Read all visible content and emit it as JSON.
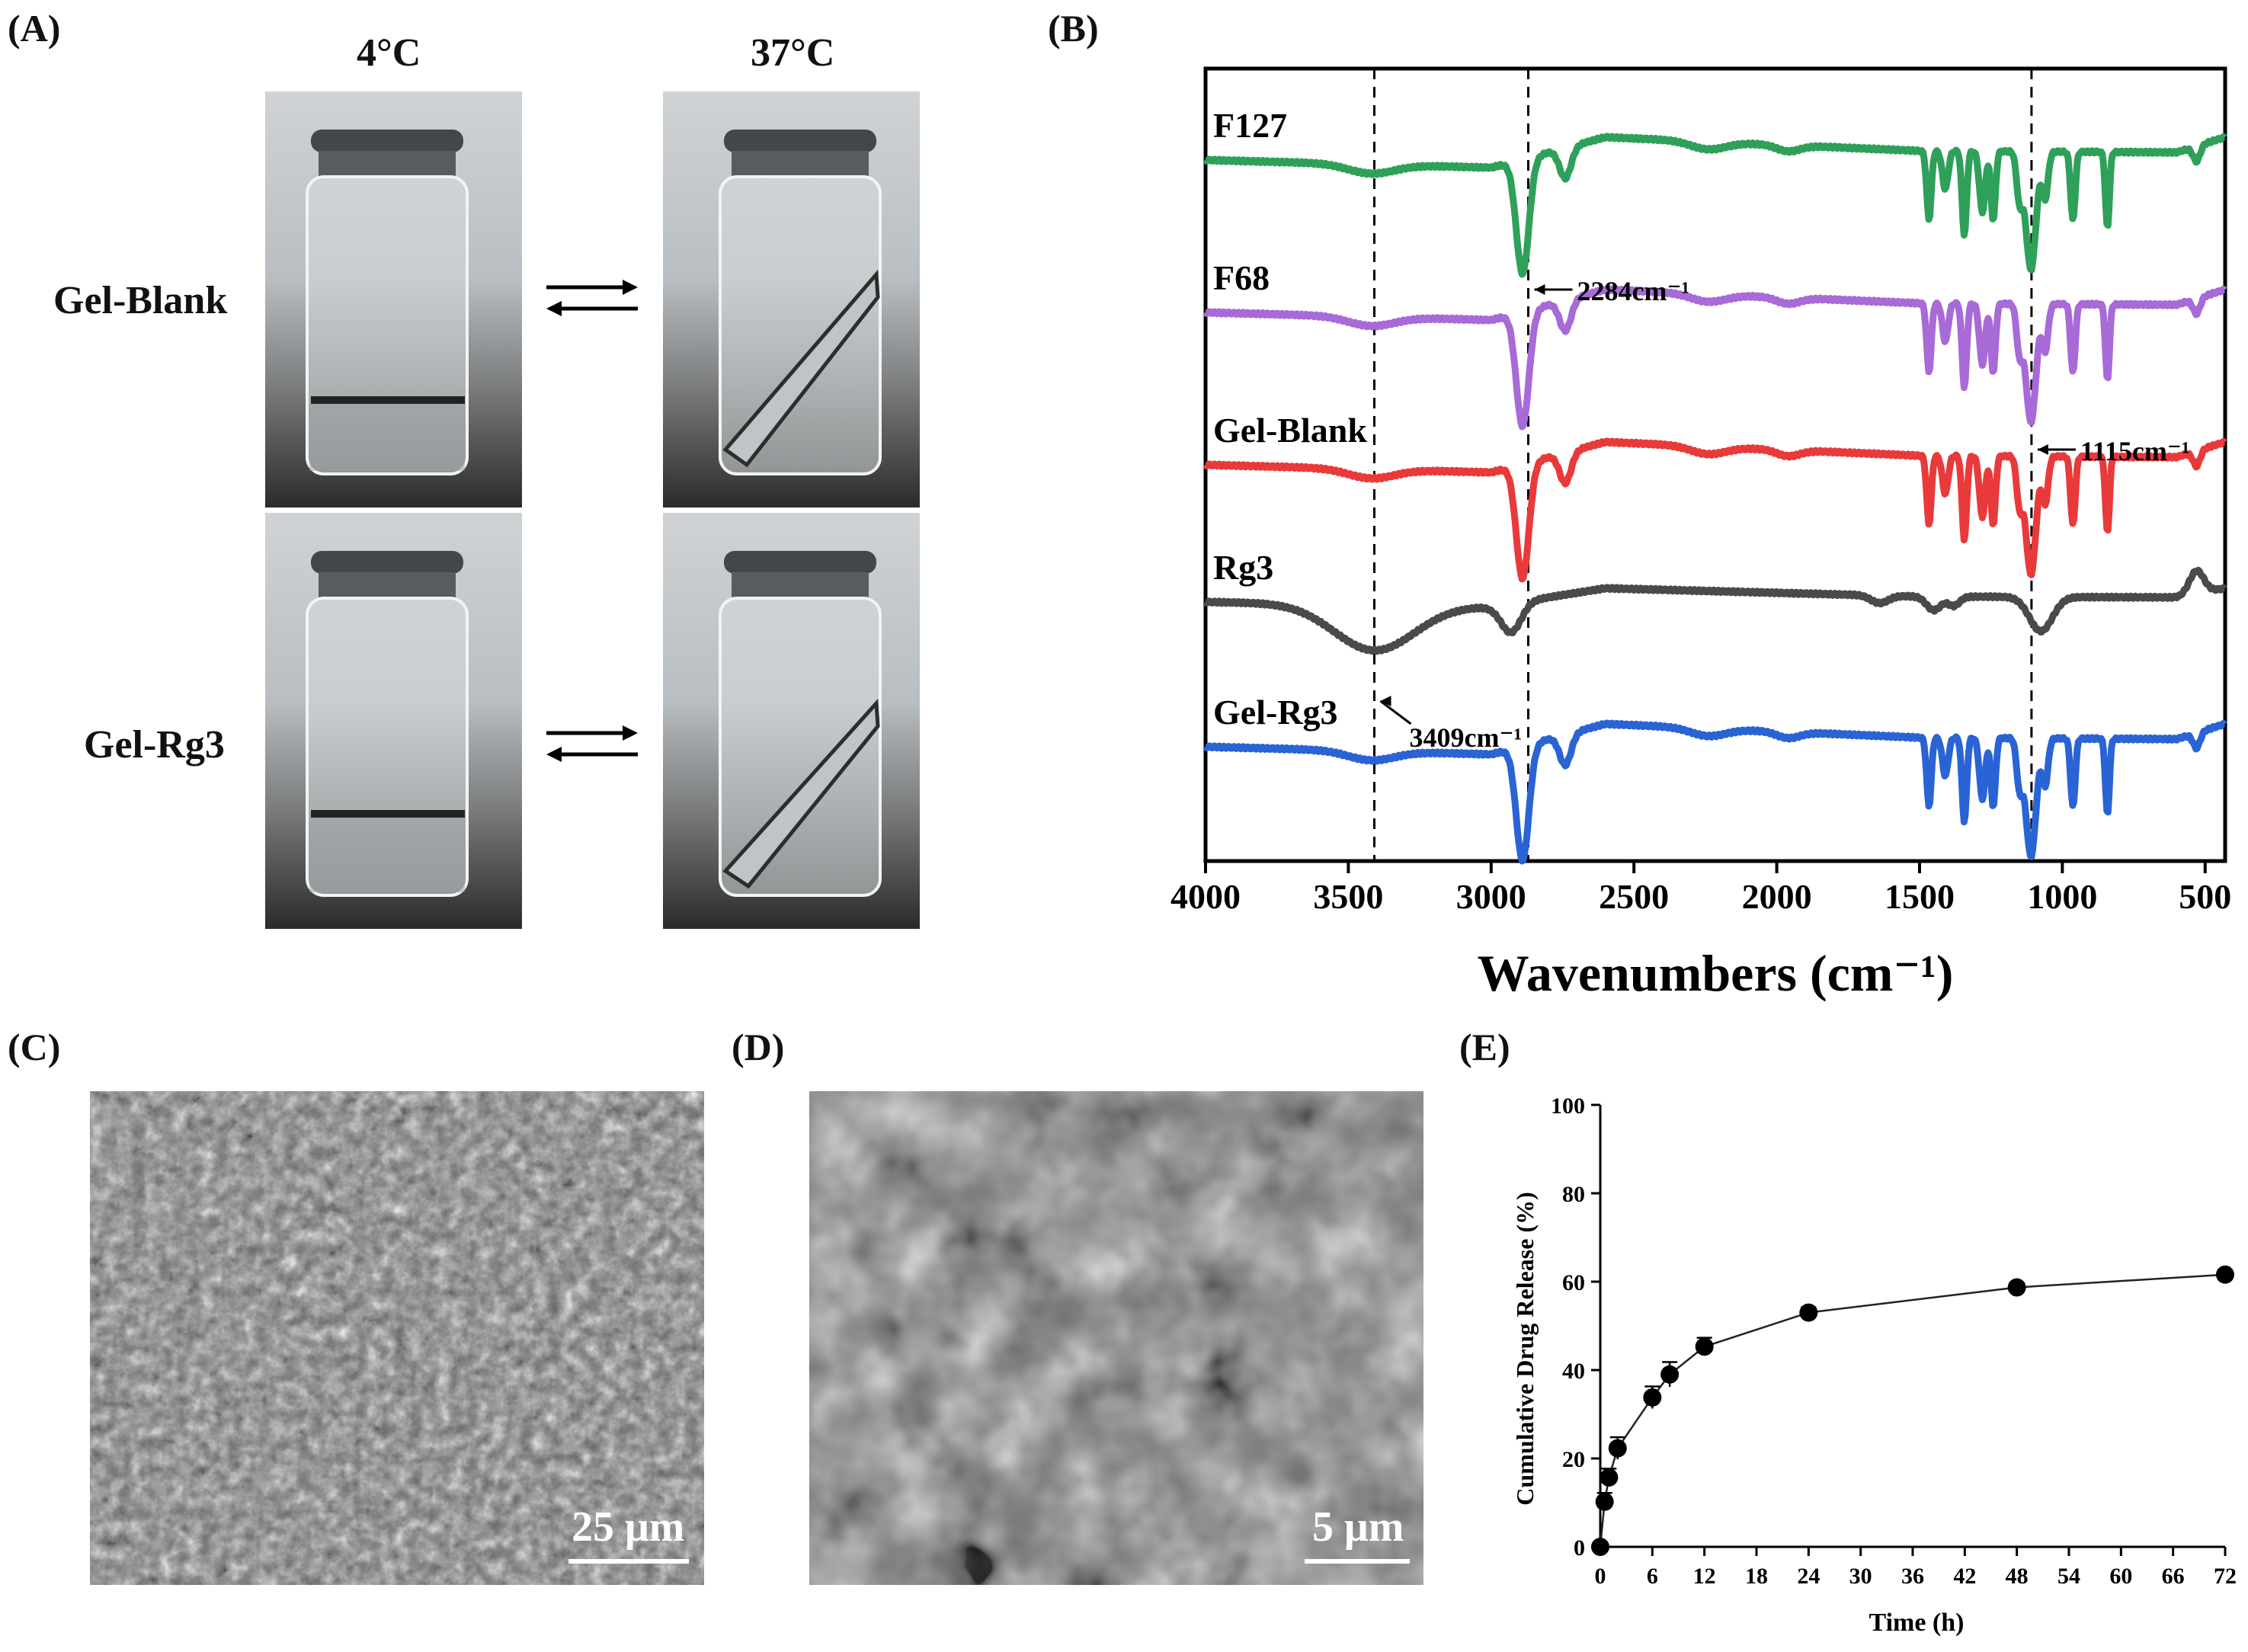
{
  "panels": {
    "A": {
      "letter": "(A)",
      "col_labels": [
        "4°C",
        "37°C"
      ],
      "row_labels": [
        "Gel-Blank",
        "Gel-Rg3"
      ]
    },
    "B": {
      "letter": "(B)"
    },
    "C": {
      "letter": "(C)",
      "scale_label": "25 μm"
    },
    "D": {
      "letter": "(D)",
      "scale_label": "5 μm"
    },
    "E": {
      "letter": "(E)"
    }
  },
  "chart_data": [
    {
      "panel": "B",
      "type": "line",
      "xlabel": "Wavenumbers (cm⁻¹)",
      "x_ticks": [
        4000,
        3500,
        3000,
        2500,
        2000,
        1500,
        1000,
        500
      ],
      "xlim": [
        4000,
        430
      ],
      "x_reversed": true,
      "series": [
        {
          "name": "F127",
          "color": "#2ea05a"
        },
        {
          "name": "F68",
          "color": "#a86ad6"
        },
        {
          "name": "Gel-Blank",
          "color": "#e83a3a"
        },
        {
          "name": "Rg3",
          "color": "#4a4a4a"
        },
        {
          "name": "Gel-Rg3",
          "color": "#2a63d4"
        }
      ],
      "reference_lines": [
        3409,
        2870,
        1108
      ],
      "annotations": [
        {
          "text": "2284cm⁻¹",
          "series": "F127"
        },
        {
          "text": "1115cm⁻¹",
          "series": "F68"
        },
        {
          "text": "3409cm⁻¹",
          "series": "Rg3"
        }
      ]
    },
    {
      "panel": "E",
      "type": "scatter",
      "xlabel": "Time (h)",
      "ylabel": "Cumulative Drug Release (%)",
      "xlim": [
        0,
        72
      ],
      "ylim": [
        0,
        100
      ],
      "x_ticks": [
        0,
        6,
        12,
        18,
        24,
        30,
        36,
        42,
        48,
        54,
        60,
        66,
        72
      ],
      "y_ticks": [
        0,
        20,
        40,
        60,
        80,
        100
      ],
      "points": [
        {
          "x": 0,
          "y": 0,
          "err": 0
        },
        {
          "x": 0.5,
          "y": 10.2,
          "err": 2.0
        },
        {
          "x": 1,
          "y": 15.7,
          "err": 2.0
        },
        {
          "x": 2,
          "y": 22.3,
          "err": 2.5
        },
        {
          "x": 6,
          "y": 33.8,
          "err": 2.5
        },
        {
          "x": 8,
          "y": 39.0,
          "err": 2.8
        },
        {
          "x": 12,
          "y": 45.3,
          "err": 2.0
        },
        {
          "x": 24,
          "y": 53.0,
          "err": 1.2
        },
        {
          "x": 48,
          "y": 58.7,
          "err": 1.0
        },
        {
          "x": 72,
          "y": 61.6,
          "err": 1.0
        }
      ]
    }
  ]
}
